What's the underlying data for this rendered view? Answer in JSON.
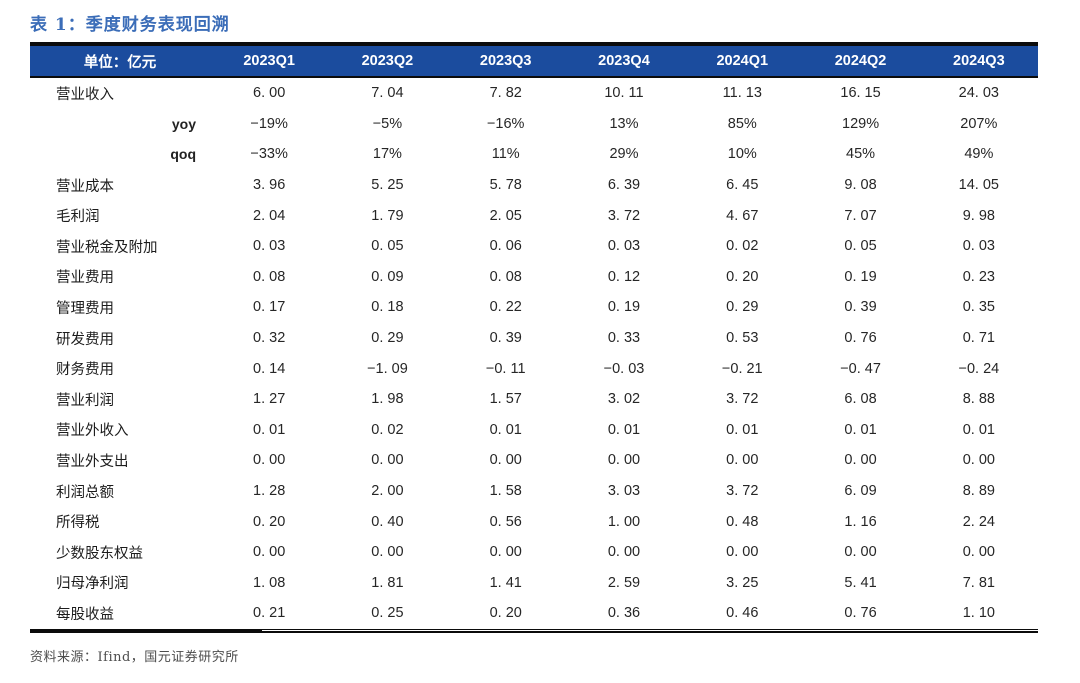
{
  "title": "表 1：季度财务表现回溯",
  "source": "资料来源：Ifind，国元证券研究所",
  "colors": {
    "header_bg": "#1b4c9e",
    "title_blue": "#3b6db8",
    "rule_black": "#0b0b0b",
    "body_text": "#262626",
    "source_text": "#4d4d4d"
  },
  "table": {
    "unit_header": "单位：亿元",
    "columns": [
      "2023Q1",
      "2023Q2",
      "2023Q3",
      "2023Q4",
      "2024Q1",
      "2024Q2",
      "2024Q3"
    ],
    "rows": [
      {
        "label": "营业收入",
        "sub": false,
        "values": [
          "6. 00",
          "7. 04",
          "7. 82",
          "10. 11",
          "11. 13",
          "16. 15",
          "24. 03"
        ]
      },
      {
        "label": "yoy",
        "sub": true,
        "values": [
          "−19%",
          "−5%",
          "−16%",
          "13%",
          "85%",
          "129%",
          "207%"
        ]
      },
      {
        "label": "qoq",
        "sub": true,
        "values": [
          "−33%",
          "17%",
          "11%",
          "29%",
          "10%",
          "45%",
          "49%"
        ]
      },
      {
        "label": "营业成本",
        "sub": false,
        "values": [
          "3. 96",
          "5. 25",
          "5. 78",
          "6. 39",
          "6. 45",
          "9. 08",
          "14. 05"
        ]
      },
      {
        "label": "毛利润",
        "sub": false,
        "values": [
          "2. 04",
          "1. 79",
          "2. 05",
          "3. 72",
          "4. 67",
          "7. 07",
          "9. 98"
        ]
      },
      {
        "label": "营业税金及附加",
        "sub": false,
        "values": [
          "0. 03",
          "0. 05",
          "0. 06",
          "0. 03",
          "0. 02",
          "0. 05",
          "0. 03"
        ]
      },
      {
        "label": "营业费用",
        "sub": false,
        "values": [
          "0. 08",
          "0. 09",
          "0. 08",
          "0. 12",
          "0. 20",
          "0. 19",
          "0. 23"
        ]
      },
      {
        "label": "管理费用",
        "sub": false,
        "values": [
          "0. 17",
          "0. 18",
          "0. 22",
          "0. 19",
          "0. 29",
          "0. 39",
          "0. 35"
        ]
      },
      {
        "label": "研发费用",
        "sub": false,
        "values": [
          "0. 32",
          "0. 29",
          "0. 39",
          "0. 33",
          "0. 53",
          "0. 76",
          "0. 71"
        ]
      },
      {
        "label": "财务费用",
        "sub": false,
        "values": [
          "0. 14",
          "−1. 09",
          "−0. 11",
          "−0. 03",
          "−0. 21",
          "−0. 47",
          "−0. 24"
        ]
      },
      {
        "label": "营业利润",
        "sub": false,
        "values": [
          "1. 27",
          "1. 98",
          "1. 57",
          "3. 02",
          "3. 72",
          "6. 08",
          "8. 88"
        ]
      },
      {
        "label": "营业外收入",
        "sub": false,
        "values": [
          "0. 01",
          "0. 02",
          "0. 01",
          "0. 01",
          "0. 01",
          "0. 01",
          "0. 01"
        ]
      },
      {
        "label": "营业外支出",
        "sub": false,
        "values": [
          "0. 00",
          "0. 00",
          "0. 00",
          "0. 00",
          "0. 00",
          "0. 00",
          "0. 00"
        ]
      },
      {
        "label": "利润总额",
        "sub": false,
        "values": [
          "1. 28",
          "2. 00",
          "1. 58",
          "3. 03",
          "3. 72",
          "6. 09",
          "8. 89"
        ]
      },
      {
        "label": "所得税",
        "sub": false,
        "values": [
          "0. 20",
          "0. 40",
          "0. 56",
          "1. 00",
          "0. 48",
          "1. 16",
          "2. 24"
        ]
      },
      {
        "label": "少数股东权益",
        "sub": false,
        "values": [
          "0. 00",
          "0. 00",
          "0. 00",
          "0. 00",
          "0. 00",
          "0. 00",
          "0. 00"
        ]
      },
      {
        "label": "归母净利润",
        "sub": false,
        "values": [
          "1. 08",
          "1. 81",
          "1. 41",
          "2. 59",
          "3. 25",
          "5. 41",
          "7. 81"
        ]
      },
      {
        "label": "每股收益",
        "sub": false,
        "values": [
          "0. 21",
          "0. 25",
          "0. 20",
          "0. 36",
          "0. 46",
          "0. 76",
          "1. 10"
        ]
      }
    ]
  }
}
